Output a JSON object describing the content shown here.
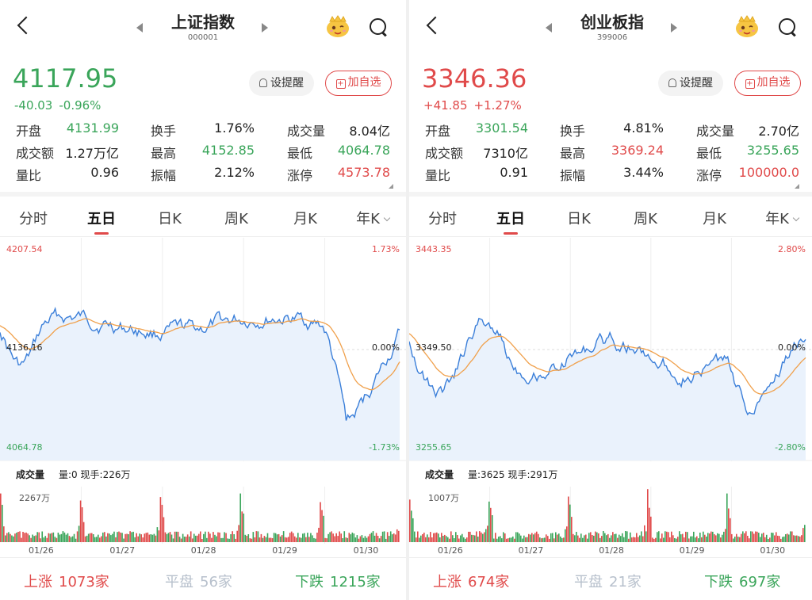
{
  "panels": [
    {
      "title": "上证指数",
      "code": "000001",
      "price": "4117.95",
      "change": "-40.03",
      "change_pct": "-0.96%",
      "trend": "down",
      "remind_label": "设提醒",
      "add_label": "加自选",
      "stats": [
        [
          {
            "label": "开盘",
            "value": "4131.99",
            "color": "green"
          },
          {
            "label": "换手",
            "value": "1.76%",
            "color": ""
          },
          {
            "label": "成交量",
            "value": "8.04亿",
            "color": ""
          }
        ],
        [
          {
            "label": "成交额",
            "value": "1.27万亿",
            "color": ""
          },
          {
            "label": "最高",
            "value": "4152.85",
            "color": "green"
          },
          {
            "label": "最低",
            "value": "4064.78",
            "color": "green"
          }
        ],
        [
          {
            "label": "量比",
            "value": "0.96",
            "color": ""
          },
          {
            "label": "振幅",
            "value": "2.12%",
            "color": ""
          },
          {
            "label": "涨停",
            "value": "4573.78",
            "color": "red"
          }
        ]
      ],
      "tabs": [
        "分时",
        "五日",
        "日K",
        "周K",
        "月K",
        "年K"
      ],
      "active_tab": 1,
      "chart": {
        "max": "4207.54",
        "mid": "4136.16",
        "min": "4064.78",
        "pct_top": "1.73%",
        "pct_mid": "0.00%",
        "pct_bottom": "-1.73%"
      },
      "volume": {
        "label": "成交量",
        "amount": "量:0",
        "hand": "现手:226万",
        "max": "2267万"
      },
      "dates": [
        "01/26",
        "01/27",
        "01/28",
        "01/29",
        "01/30"
      ],
      "advance": {
        "up_label": "上涨",
        "up": "1073家",
        "flat_label": "平盘",
        "flat": "56家",
        "down_label": "下跌",
        "down": "1215家"
      }
    },
    {
      "title": "创业板指",
      "code": "399006",
      "price": "3346.36",
      "change": "+41.85",
      "change_pct": "+1.27%",
      "trend": "up",
      "remind_label": "设提醒",
      "add_label": "加自选",
      "stats": [
        [
          {
            "label": "开盘",
            "value": "3301.54",
            "color": "green"
          },
          {
            "label": "换手",
            "value": "4.81%",
            "color": ""
          },
          {
            "label": "成交量",
            "value": "2.70亿",
            "color": ""
          }
        ],
        [
          {
            "label": "成交额",
            "value": "7310亿",
            "color": ""
          },
          {
            "label": "最高",
            "value": "3369.24",
            "color": "red"
          },
          {
            "label": "最低",
            "value": "3255.65",
            "color": "green"
          }
        ],
        [
          {
            "label": "量比",
            "value": "0.91",
            "color": ""
          },
          {
            "label": "振幅",
            "value": "3.44%",
            "color": ""
          },
          {
            "label": "涨停",
            "value": "100000.0",
            "color": "red"
          }
        ]
      ],
      "tabs": [
        "分时",
        "五日",
        "日K",
        "周K",
        "月K",
        "年K"
      ],
      "active_tab": 1,
      "chart": {
        "max": "3443.35",
        "mid": "3349.50",
        "min": "3255.65",
        "pct_top": "2.80%",
        "pct_mid": "0.00%",
        "pct_bottom": "-2.80%"
      },
      "volume": {
        "label": "成交量",
        "amount": "量:3625",
        "hand": "现手:291万",
        "max": "1007万"
      },
      "dates": [
        "01/26",
        "01/27",
        "01/28",
        "01/29",
        "01/30"
      ],
      "advance": {
        "up_label": "上涨",
        "up": "674家",
        "flat_label": "平盘",
        "flat": "21家",
        "down_label": "下跌",
        "down": "697家"
      }
    }
  ],
  "colors": {
    "red": "#e04a4a",
    "green": "#3aa55a",
    "blue": "#3b7fd9",
    "orange": "#f0a04b"
  }
}
